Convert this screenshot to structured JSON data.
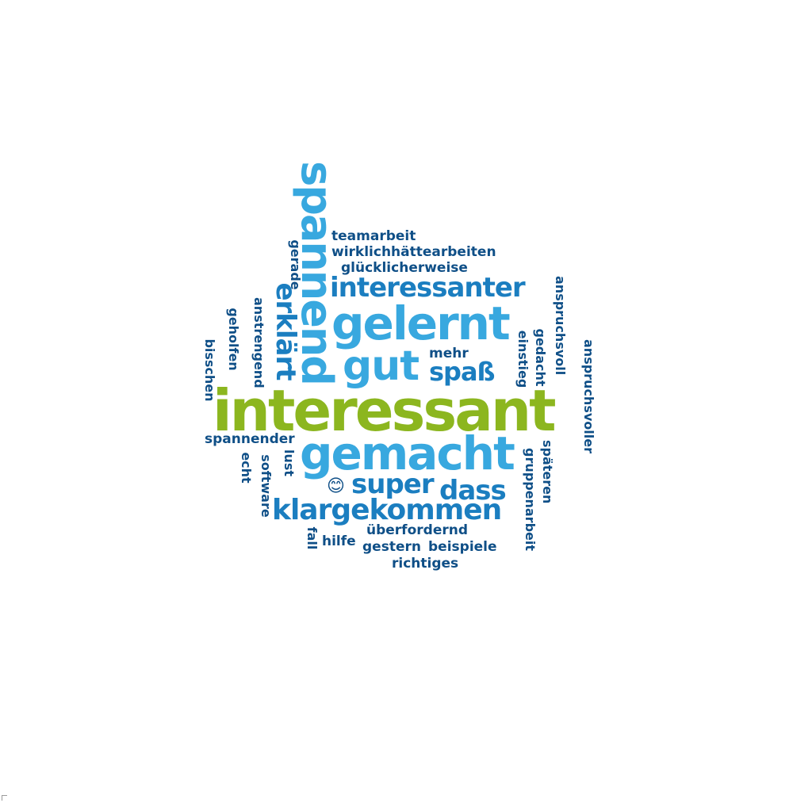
{
  "word_cloud": {
    "words": [
      "interessant",
      "gemacht",
      "gelernt",
      "gut",
      "spannend",
      "interessanter",
      "klargekommen",
      "super",
      "dass",
      "spaß",
      "erklärt",
      "teamarbeit",
      "wirklichhättearbeiten",
      "glücklicherweise",
      "mehr",
      "überfordernd",
      "gestern",
      "beispiele",
      "richtiges",
      "hilfe",
      "spannender",
      "gerade",
      "anstrengend",
      "geholfen",
      "bisschen",
      "echt",
      "software",
      "lust",
      "fall",
      "einstieg",
      "gedacht",
      "anspruchsvoll",
      "anspruchsvoller",
      "gruppenarbeit",
      "späteren"
    ],
    "emoji": "😊",
    "colors": {
      "highlight": "#8cb61f",
      "light_blue": "#38a8df",
      "mid_blue": "#1b7ec0",
      "dark_blue": "#0f4f87"
    }
  }
}
